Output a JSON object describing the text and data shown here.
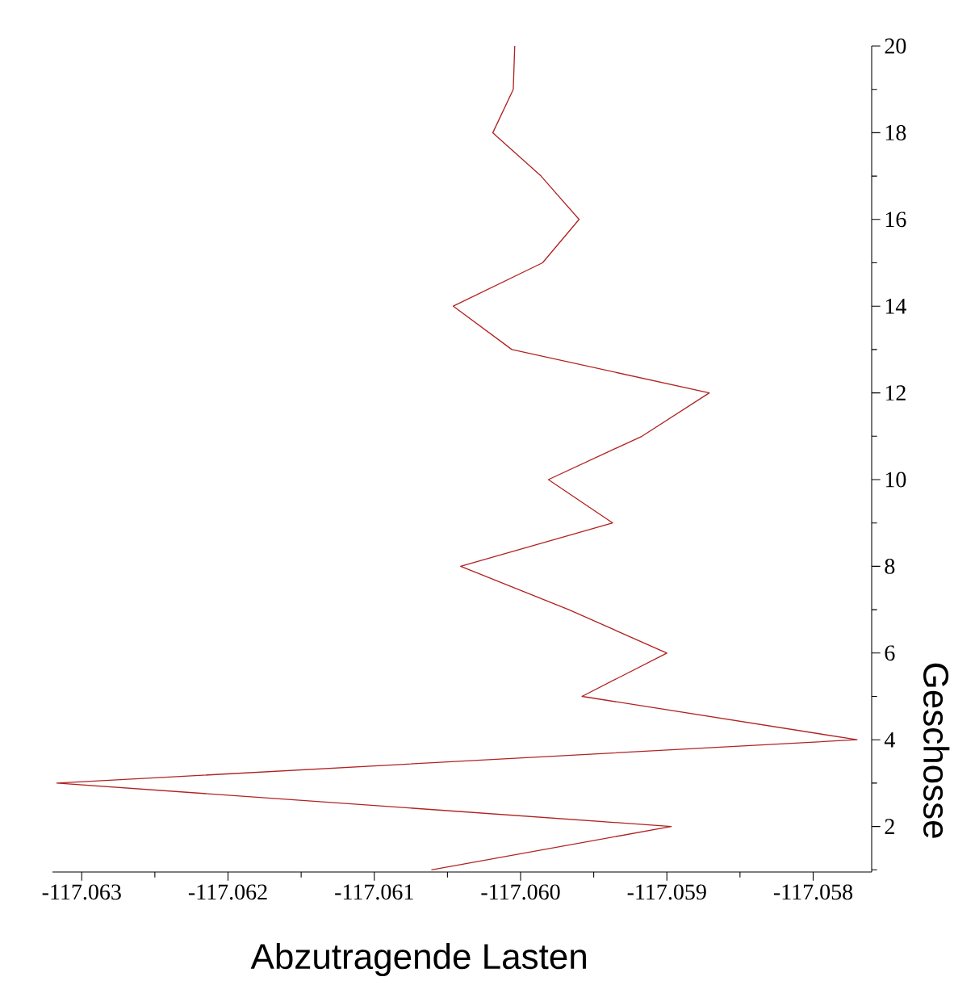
{
  "chart_data": {
    "type": "line",
    "xlabel": "Abzutragende Lasten",
    "ylabel": "Geschosse",
    "x": [
      -117.06061,
      -117.05897,
      -117.06317,
      -117.0577,
      -117.05958,
      -117.059,
      -117.05967,
      -117.06041,
      -117.05937,
      -117.05981,
      -117.05917,
      -117.05871,
      -117.06006,
      -117.06046,
      -117.05985,
      -117.0596,
      -117.05986,
      -117.06019,
      -117.06005,
      -117.06004
    ],
    "values": [
      1,
      2,
      3,
      4,
      5,
      6,
      7,
      8,
      9,
      10,
      11,
      12,
      13,
      14,
      15,
      16,
      17,
      18,
      19,
      20
    ],
    "color": "#b22222",
    "xlim": [
      -117.0632,
      -117.0576
    ],
    "ylim": [
      0.95,
      20
    ],
    "xticks": [
      -117.063,
      {
        "value": -117.0625,
        "label": null
      },
      -117.062,
      {
        "value": -117.0615,
        "label": null
      },
      -117.061,
      {
        "value": -117.0605,
        "label": null
      },
      {
        "value": -117.06,
        "label": "-117.060"
      },
      {
        "value": -117.0595,
        "label": null
      },
      -117.059,
      {
        "value": -117.0585,
        "label": null
      },
      -117.058
    ],
    "yticks": [
      {
        "value": 1,
        "label": null
      },
      2,
      {
        "value": 3,
        "label": null
      },
      4,
      {
        "value": 5,
        "label": null
      },
      6,
      {
        "value": 7,
        "label": null
      },
      8,
      {
        "value": 9,
        "label": null
      },
      10,
      {
        "value": 11,
        "label": null
      },
      12,
      {
        "value": 13,
        "label": null
      },
      14,
      {
        "value": 15,
        "label": null
      },
      16,
      {
        "value": 17,
        "label": null
      },
      18,
      {
        "value": 19,
        "label": null
      },
      20
    ]
  }
}
